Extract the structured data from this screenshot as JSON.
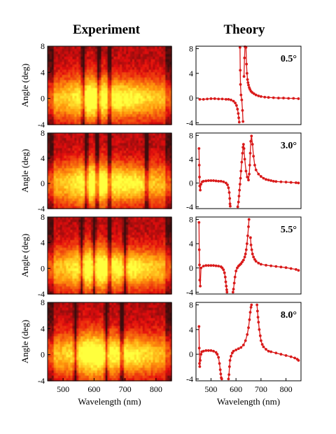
{
  "headers": {
    "experiment": "Experiment",
    "theory": "Theory"
  },
  "axes": {
    "ylabel": "Angle (deg)",
    "xlabel": "Wavelength (nm)",
    "yticks": [
      "8",
      "4",
      "0",
      "-4"
    ],
    "xticks": [
      "500",
      "600",
      "700",
      "800"
    ]
  },
  "colors": {
    "curve": "#d91a1a",
    "map_low": "#2a0606",
    "map_mid": "#e01010",
    "map_high": "#ffff30"
  },
  "chart_data": [
    {
      "type": "heatmap",
      "panel": "experiment",
      "row": 0,
      "xlabel": "Wavelength (nm)",
      "ylabel": "Angle (deg)",
      "xlim": [
        450,
        850
      ],
      "ylim": [
        -4,
        8
      ],
      "features_nm": [
        565,
        615,
        650
      ]
    },
    {
      "type": "heatmap",
      "panel": "experiment",
      "row": 1,
      "xlabel": "Wavelength (nm)",
      "ylabel": "Angle (deg)",
      "xlim": [
        450,
        850
      ],
      "ylim": [
        -4,
        8
      ],
      "features_nm": [
        575,
        610,
        650,
        770
      ]
    },
    {
      "type": "heatmap",
      "panel": "experiment",
      "row": 2,
      "xlabel": "Wavelength (nm)",
      "ylabel": "Angle (deg)",
      "xlim": [
        450,
        850
      ],
      "ylim": [
        -4,
        8
      ],
      "features_nm": [
        560,
        600,
        650,
        700
      ]
    },
    {
      "type": "heatmap",
      "panel": "experiment",
      "row": 3,
      "xlabel": "Wavelength (nm)",
      "ylabel": "Angle (deg)",
      "xlim": [
        450,
        850
      ],
      "ylim": [
        -4,
        8
      ],
      "features_nm": [
        540,
        640,
        690
      ]
    },
    {
      "type": "line",
      "panel": "theory",
      "row": 0,
      "label": "0.5°",
      "xlabel": "Wavelength (nm)",
      "ylim": [
        -4,
        8
      ],
      "xlim": [
        440,
        860
      ],
      "x": [
        455,
        470,
        485,
        500,
        515,
        530,
        545,
        560,
        570,
        580,
        590,
        597,
        602,
        606,
        609,
        611,
        613,
        615,
        616,
        617,
        618,
        620,
        623,
        626,
        628,
        630,
        632,
        634,
        636,
        638,
        640,
        642,
        644,
        646,
        648,
        650,
        653,
        656,
        660,
        665,
        672,
        680,
        690,
        700,
        715,
        730,
        750,
        770,
        790,
        810,
        830,
        850
      ],
      "y": [
        -0.2,
        -0.2,
        -0.15,
        -0.1,
        -0.1,
        -0.15,
        -0.15,
        -0.2,
        -0.2,
        -0.3,
        -0.5,
        -0.8,
        -1.2,
        -1.8,
        -2.5,
        -3.2,
        -3.9,
        null,
        8.2,
        4.5,
        2.2,
        0.5,
        -0.3,
        -2.0,
        -3.8,
        null,
        3.5,
        6.5,
        8.3,
        null,
        8.2,
        5.5,
        4.0,
        3.0,
        2.5,
        2.1,
        1.7,
        1.4,
        1.1,
        0.9,
        0.7,
        0.5,
        0.35,
        0.25,
        0.15,
        0.1,
        0.05,
        0.0,
        0.0,
        -0.05,
        -0.05,
        -0.1
      ]
    },
    {
      "type": "line",
      "panel": "theory",
      "row": 1,
      "label": "3.0°",
      "xlabel": "Wavelength (nm)",
      "ylim": [
        -4,
        8
      ],
      "xlim": [
        440,
        860
      ],
      "x": [
        452,
        453,
        454,
        455,
        457,
        460,
        465,
        470,
        480,
        490,
        500,
        510,
        520,
        530,
        540,
        550,
        560,
        566,
        570,
        573,
        575,
        576,
        577,
        578,
        580,
        590,
        600,
        607,
        610,
        612,
        614,
        616,
        618,
        620,
        623,
        626,
        628,
        630,
        632,
        635,
        640,
        645,
        650,
        653,
        655,
        657,
        659,
        662,
        666,
        670,
        675,
        680,
        690,
        700,
        710,
        720,
        730,
        740,
        750,
        760,
        780,
        800,
        820,
        840,
        850
      ],
      "y": [
        5.8,
        3.0,
        1.0,
        -0.5,
        -1.2,
        -0.2,
        0.2,
        0.3,
        0.35,
        0.4,
        0.4,
        0.4,
        0.35,
        0.3,
        0.3,
        0.2,
        0.0,
        -0.3,
        -0.8,
        -1.6,
        -2.6,
        -3.5,
        -3.9,
        null,
        null,
        null,
        null,
        -4.0,
        -3.2,
        -2.2,
        -1.2,
        -0.2,
        0.8,
        2.0,
        3.5,
        5.0,
        6.0,
        6.5,
        5.8,
        4.0,
        2.0,
        1.0,
        0.5,
        1.5,
        3.0,
        5.0,
        7.0,
        7.9,
        6.5,
        4.5,
        3.0,
        2.2,
        1.5,
        1.1,
        0.8,
        0.6,
        0.5,
        0.4,
        0.3,
        0.25,
        0.2,
        0.15,
        0.1,
        0.05,
        0.0
      ]
    },
    {
      "type": "line",
      "panel": "theory",
      "row": 2,
      "label": "5.5°",
      "xlabel": "Wavelength (nm)",
      "ylim": [
        -4,
        8
      ],
      "xlim": [
        440,
        860
      ],
      "x": [
        452,
        453,
        454,
        455,
        457,
        460,
        470,
        480,
        490,
        500,
        510,
        520,
        530,
        540,
        545,
        550,
        554,
        557,
        559,
        561,
        563,
        564,
        565,
        575,
        585,
        588,
        590,
        593,
        596,
        600,
        605,
        610,
        615,
        620,
        625,
        630,
        635,
        638,
        641,
        644,
        647,
        650,
        652,
        654,
        656,
        658,
        660,
        663,
        666,
        670,
        675,
        680,
        690,
        700,
        720,
        740,
        760,
        780,
        800,
        820,
        840,
        850
      ],
      "y": [
        7.5,
        3.0,
        0.5,
        -2.0,
        -3.0,
        0.0,
        0.3,
        0.4,
        0.4,
        0.4,
        0.4,
        0.35,
        0.3,
        0.2,
        0.0,
        -0.3,
        -0.8,
        -1.5,
        -2.3,
        -3.0,
        -3.6,
        -4.0,
        null,
        null,
        null,
        -4.0,
        -3.5,
        -2.5,
        -1.5,
        -0.5,
        0.0,
        0.3,
        0.5,
        0.7,
        1.0,
        1.3,
        1.8,
        2.3,
        3.0,
        4.0,
        5.3,
        6.8,
        8.0,
        null,
        null,
        5.0,
        3.8,
        3.0,
        2.3,
        1.8,
        1.4,
        1.1,
        0.8,
        0.6,
        0.45,
        0.35,
        0.25,
        0.15,
        0.05,
        -0.1,
        -0.25,
        -0.4
      ]
    },
    {
      "type": "line",
      "panel": "theory",
      "row": 3,
      "label": "8.0°",
      "xlabel": "Wavelength (nm)",
      "ylim": [
        -4,
        8
      ],
      "xlim": [
        440,
        860
      ],
      "x": [
        452,
        453,
        454,
        455,
        457,
        460,
        463,
        470,
        480,
        490,
        500,
        510,
        520,
        525,
        530,
        534,
        537,
        539,
        541,
        543,
        545,
        555,
        565,
        570,
        572,
        574,
        576,
        580,
        585,
        590,
        600,
        610,
        620,
        630,
        638,
        645,
        650,
        654,
        657,
        660,
        662,
        663,
        664,
        670,
        680,
        684,
        686,
        688,
        690,
        693,
        697,
        700,
        705,
        710,
        720,
        730,
        740,
        760,
        780,
        800,
        820,
        835,
        845,
        850
      ],
      "y": [
        4.5,
        1.0,
        -1.5,
        -2.0,
        -1.0,
        0.0,
        0.4,
        0.5,
        0.6,
        0.6,
        0.6,
        0.5,
        0.3,
        0.0,
        -0.5,
        -1.5,
        -2.5,
        -3.2,
        -3.8,
        -4.0,
        null,
        null,
        null,
        -4.0,
        -3.3,
        -2.0,
        -1.0,
        -0.3,
        0.2,
        0.5,
        0.7,
        0.9,
        1.1,
        1.5,
        2.2,
        3.2,
        4.3,
        5.6,
        6.8,
        7.6,
        8.0,
        null,
        null,
        null,
        null,
        8.0,
        7.0,
        6.0,
        5.2,
        4.0,
        3.0,
        2.2,
        1.6,
        1.2,
        0.8,
        0.5,
        0.4,
        0.2,
        0.0,
        -0.2,
        -0.4,
        -0.6,
        -0.8,
        -1.0
      ]
    }
  ]
}
